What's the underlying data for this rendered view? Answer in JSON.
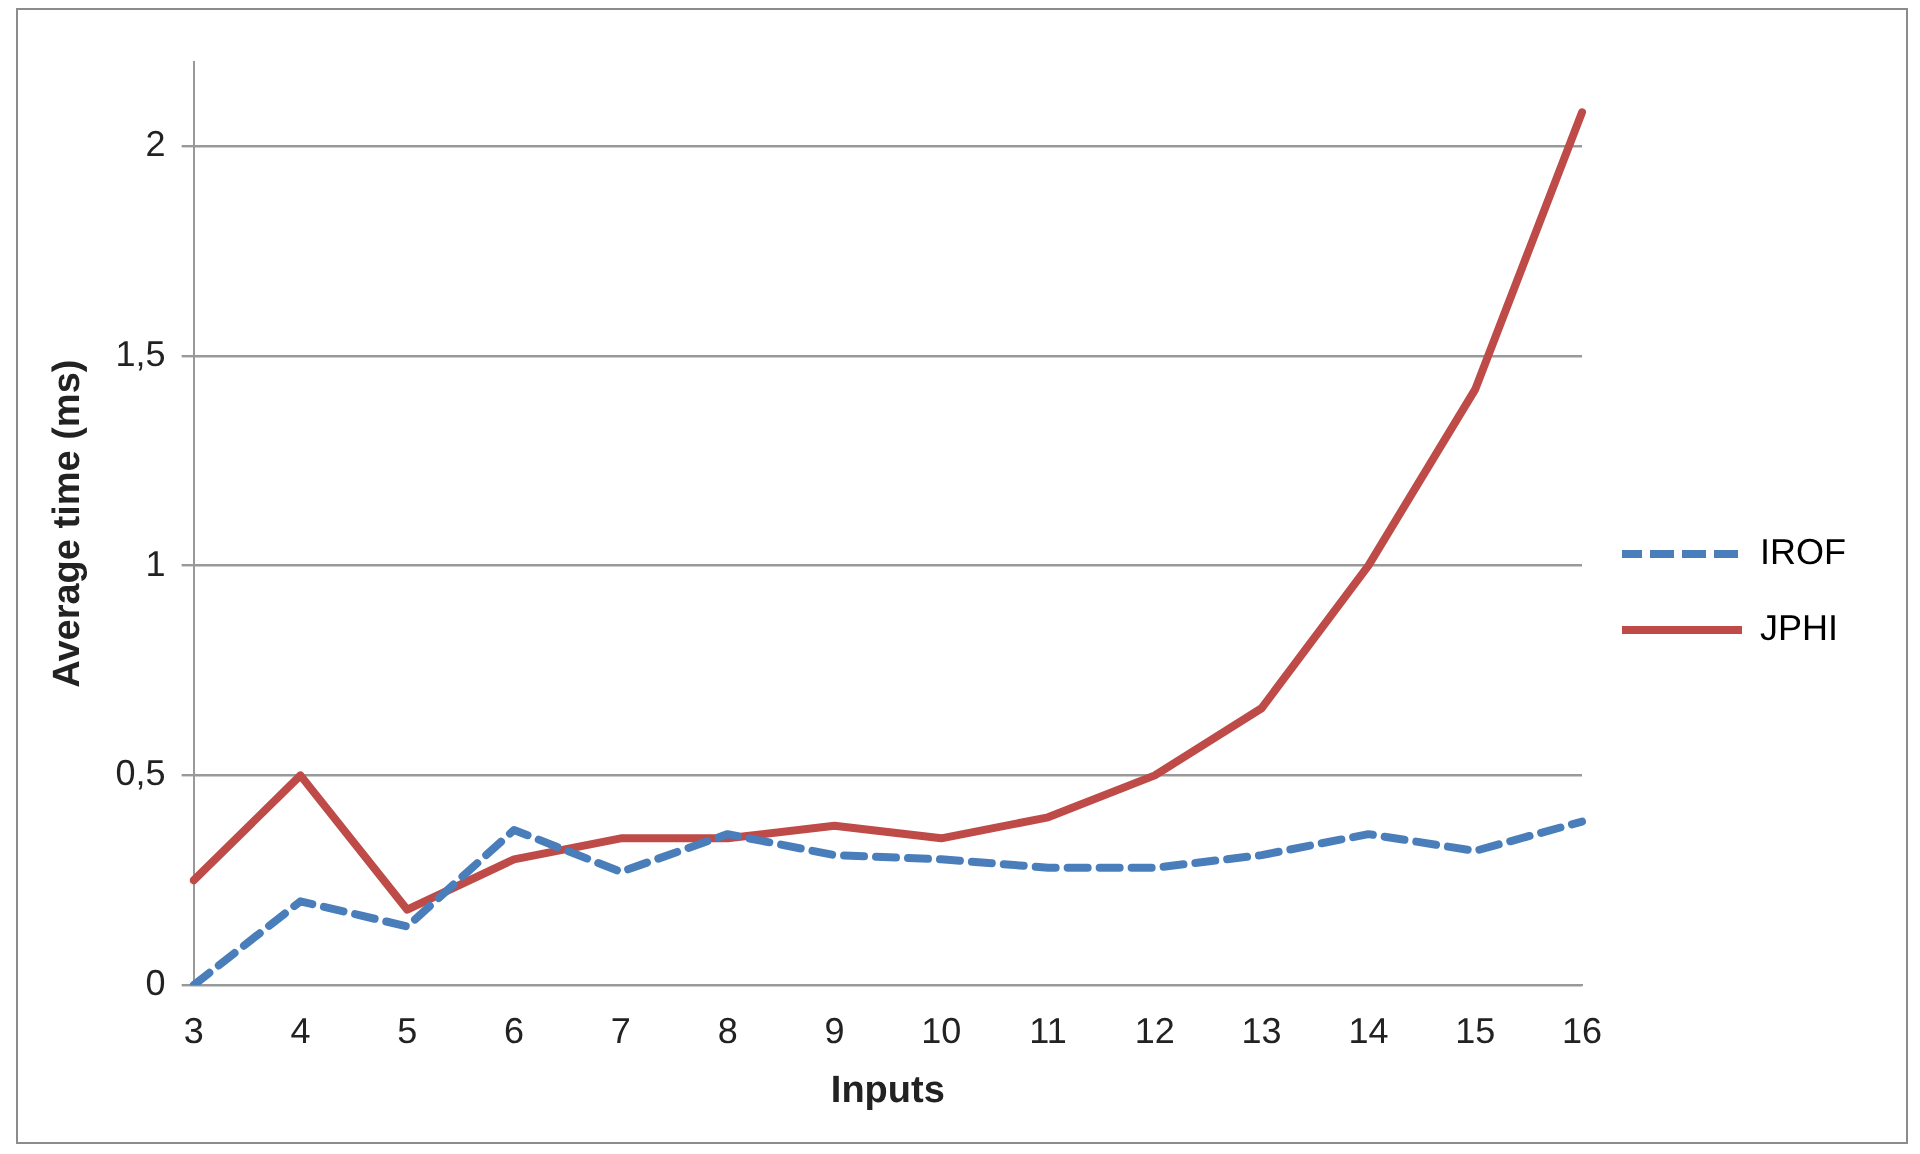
{
  "chart_data": {
    "type": "line",
    "xlabel": "Inputs",
    "ylabel": "Average time (ms)",
    "categories": [
      "3",
      "4",
      "5",
      "6",
      "7",
      "8",
      "9",
      "10",
      "11",
      "12",
      "13",
      "14",
      "15",
      "16"
    ],
    "series": [
      {
        "name": "IROF",
        "color": "#4a7ebb",
        "line_style": "dashed",
        "values": [
          0,
          0.2,
          0.14,
          0.37,
          0.27,
          0.36,
          0.31,
          0.3,
          0.28,
          0.28,
          0.31,
          0.36,
          0.32,
          0.39
        ]
      },
      {
        "name": "JPHI",
        "color": "#be4b48",
        "line_style": "solid",
        "values": [
          0.25,
          0.5,
          0.18,
          0.3,
          0.35,
          0.35,
          0.38,
          0.35,
          0.4,
          0.5,
          0.66,
          1.0,
          1.42,
          2.08
        ]
      }
    ],
    "ylim": [
      0,
      2.2
    ],
    "yticks": [
      {
        "value": 0,
        "label": "0"
      },
      {
        "value": 0.5,
        "label": "0,5"
      },
      {
        "value": 1,
        "label": "1"
      },
      {
        "value": 1.5,
        "label": "1,5"
      },
      {
        "value": 2,
        "label": "2"
      }
    ],
    "grid": "y",
    "legend": "right",
    "marker": "none"
  }
}
